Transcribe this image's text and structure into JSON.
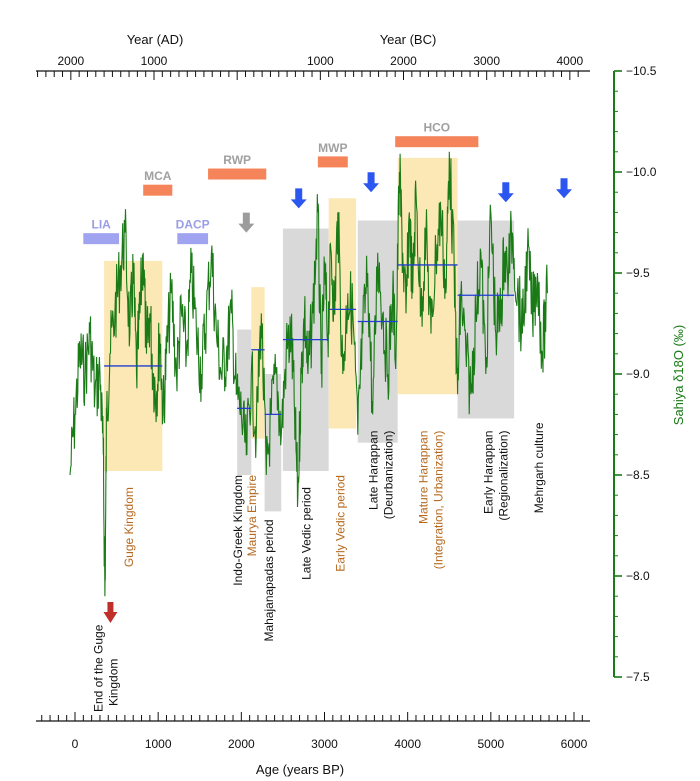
{
  "chart_data": {
    "type": "line",
    "title": "",
    "xlabel": "Age (years BP)",
    "ylabel": "Sahiya δ18O (‰)",
    "xlim": [
      -450,
      6000
    ],
    "ylim": [
      -7.5,
      -10.5
    ],
    "y_inverted": true,
    "top_axis": {
      "ad_label": "Year (AD)",
      "bc_label": "Year (BC)",
      "ad_ticks": [
        {
          "label": "2000",
          "bp": -50
        },
        {
          "label": "1000",
          "bp": 950
        }
      ],
      "bc_ticks": [
        {
          "label": "1000",
          "bp": 2950
        },
        {
          "label": "2000",
          "bp": 3950
        },
        {
          "label": "3000",
          "bp": 4950
        },
        {
          "label": "4000",
          "bp": 5950
        }
      ]
    },
    "x_ticks": [
      0,
      1000,
      2000,
      3000,
      4000,
      5000,
      6000
    ],
    "x_tick_labels": [
      "0",
      "1000",
      "2000",
      "3000",
      "4000",
      "5000",
      "6000"
    ],
    "y_ticks": [
      -10.5,
      -10.0,
      -9.5,
      -9.0,
      -8.5,
      -8.0,
      -7.5
    ],
    "y_tick_labels": [
      "−10.5",
      "−10.0",
      "−9.5",
      "−9.0",
      "−8.5",
      "−8.0",
      "−7.5"
    ],
    "series": [
      {
        "name": "Sahiya δ18O",
        "color": "#1a7a16",
        "x": [
          -60,
          0,
          60,
          120,
          180,
          240,
          300,
          340,
          360,
          380,
          420,
          480,
          540,
          600,
          660,
          700,
          740,
          780,
          820,
          860,
          900,
          940,
          980,
          1020,
          1060,
          1100,
          1160,
          1220,
          1280,
          1340,
          1400,
          1460,
          1520,
          1580,
          1640,
          1700,
          1760,
          1820,
          1880,
          1940,
          2000,
          2060,
          2120,
          2180,
          2240,
          2300,
          2360,
          2420,
          2480,
          2540,
          2600,
          2640,
          2680,
          2720,
          2760,
          2800,
          2860,
          2920,
          2960,
          3000,
          3040,
          3080,
          3120,
          3160,
          3220,
          3280,
          3340,
          3400,
          3460,
          3520,
          3580,
          3640,
          3700,
          3760,
          3820,
          3860,
          3900,
          3940,
          3980,
          4020,
          4060,
          4100,
          4160,
          4220,
          4280,
          4340,
          4400,
          4460,
          4500,
          4560,
          4600,
          4640,
          4700,
          4760,
          4820,
          4880,
          4940,
          5000,
          5060,
          5120,
          5160,
          5200,
          5260,
          5320,
          5380,
          5440,
          5500,
          5560,
          5620,
          5680
        ],
        "values": [
          -8.5,
          -8.8,
          -9.1,
          -9.0,
          -9.2,
          -8.9,
          -9.0,
          -8.6,
          -7.9,
          -8.8,
          -9.1,
          -9.3,
          -9.5,
          -9.7,
          -9.2,
          -9.5,
          -9.0,
          -9.3,
          -9.6,
          -9.1,
          -9.3,
          -9.0,
          -8.9,
          -9.2,
          -8.8,
          -9.1,
          -9.4,
          -9.0,
          -9.3,
          -9.1,
          -9.5,
          -9.2,
          -9.0,
          -9.3,
          -9.6,
          -9.2,
          -9.0,
          -9.1,
          -9.3,
          -8.9,
          -8.8,
          -8.6,
          -9.0,
          -8.7,
          -9.3,
          -8.5,
          -8.8,
          -9.0,
          -8.7,
          -9.1,
          -9.2,
          -8.8,
          -8.4,
          -9.0,
          -9.3,
          -9.0,
          -9.3,
          -9.8,
          -9.0,
          -9.5,
          -9.2,
          -9.6,
          -9.3,
          -9.8,
          -9.0,
          -9.4,
          -9.3,
          -8.7,
          -9.2,
          -9.5,
          -8.8,
          -9.6,
          -9.3,
          -9.0,
          -9.4,
          -9.1,
          -10.0,
          -9.6,
          -9.3,
          -9.8,
          -9.4,
          -9.9,
          -9.3,
          -9.7,
          -9.2,
          -9.6,
          -9.8,
          -9.4,
          -10.1,
          -9.5,
          -8.9,
          -9.4,
          -9.1,
          -8.9,
          -9.3,
          -9.6,
          -9.0,
          -9.8,
          -9.2,
          -9.3,
          -9.6,
          -9.5,
          -9.7,
          -9.4,
          -9.2,
          -9.6,
          -9.3,
          -9.5,
          -9.1,
          -9.4
        ]
      }
    ],
    "climate_events": [
      {
        "label": "LIA",
        "x0": 100,
        "x1": 530,
        "y": -9.67,
        "color": "#a0a4f0",
        "label_color": "#9a9ee6"
      },
      {
        "label": "DACP",
        "x0": 1230,
        "x1": 1600,
        "y": -9.67,
        "color": "#a0a4f0",
        "label_color": "#9a9ee6"
      },
      {
        "label": "MCA",
        "x0": 820,
        "x1": 1170,
        "y": -9.91,
        "color": "#f5845a",
        "label_color": "#a0a0a0"
      },
      {
        "label": "RWP",
        "x0": 1600,
        "x1": 2300,
        "y": -9.99,
        "color": "#f5845a",
        "label_color": "#a0a0a0"
      },
      {
        "label": "MWP",
        "x0": 2920,
        "x1": 3280,
        "y": -10.05,
        "color": "#f5845a",
        "label_color": "#a0a0a0"
      },
      {
        "label": "HCO",
        "x0": 3850,
        "x1": 4850,
        "y": -10.15,
        "color": "#f5845a",
        "label_color": "#a0a0a0"
      }
    ],
    "arrows": [
      {
        "x": 2060,
        "y": -9.7,
        "color": "#9c9c9c"
      },
      {
        "x": 2690,
        "y": -9.82,
        "color": "#2b57f0"
      },
      {
        "x": 3560,
        "y": -9.9,
        "color": "#2b57f0"
      },
      {
        "x": 5180,
        "y": -9.85,
        "color": "#2b57f0"
      },
      {
        "x": 5880,
        "y": -9.87,
        "color": "#2b57f0"
      }
    ],
    "periods": [
      {
        "name": "Guge Kingdom",
        "x0": 350,
        "x1": 1050,
        "ytop": -9.56,
        "ybot": -8.52,
        "fill": "#fbe8b4",
        "mean": -9.04,
        "text_color": "#b5691f",
        "lines": [
          "Guge Kingdom"
        ],
        "label_x": 700,
        "label_top": -8.44
      },
      {
        "name": "Indo-Greek Kingdom",
        "x0": 1950,
        "x1": 2120,
        "ytop": -9.22,
        "ybot": -8.5,
        "fill": "#d9d9d9",
        "mean": -8.83,
        "text_color": "#111111",
        "lines": [
          "Indo-Greek Kingdom"
        ],
        "label_x": 2010,
        "label_top": -8.5
      },
      {
        "name": "Maurya Empire",
        "x0": 2120,
        "x1": 2280,
        "ytop": -9.43,
        "ybot": -8.68,
        "fill": "#fbe8b4",
        "mean": -9.12,
        "text_color": "#b5691f",
        "lines": [
          "Maurya Empire"
        ],
        "label_x": 2175,
        "label_top": -8.5
      },
      {
        "name": "Mahajanapadas period",
        "x0": 2280,
        "x1": 2480,
        "ytop": -9.0,
        "ybot": -8.32,
        "fill": "#d9d9d9",
        "mean": -8.8,
        "text_color": "#111111",
        "lines": [
          "Mahajanapadas period"
        ],
        "label_x": 2380,
        "label_top": -8.28
      },
      {
        "name": "Late Vedic period",
        "x0": 2500,
        "x1": 3050,
        "ytop": -9.72,
        "ybot": -8.52,
        "fill": "#d9d9d9",
        "mean": -9.17,
        "text_color": "#111111",
        "lines": [
          "Late Vedic period"
        ],
        "label_x": 2830,
        "label_top": -8.44
      },
      {
        "name": "Early Vedic period",
        "x0": 3050,
        "x1": 3380,
        "ytop": -9.87,
        "ybot": -8.73,
        "fill": "#fbe8b4",
        "mean": -9.32,
        "text_color": "#b5691f",
        "lines": [
          "Early Vedic period"
        ],
        "label_x": 3240,
        "label_top": -8.5
      },
      {
        "name": "Late Harappan",
        "x0": 3400,
        "x1": 3880,
        "ytop": -9.76,
        "ybot": -8.66,
        "fill": "#d9d9d9",
        "mean": -9.26,
        "text_color": "#111111",
        "lines": [
          "Late Harappan",
          "(Deurbanization)"
        ],
        "label_x": 3640,
        "label_top": -8.72
      },
      {
        "name": "Mature Harappan",
        "x0": 3880,
        "x1": 4600,
        "ytop": -10.07,
        "ybot": -8.9,
        "fill": "#fbe8b4",
        "mean": -9.54,
        "text_color": "#b5691f",
        "lines": [
          "Mature Harappan",
          "(Integration, Urbanization)"
        ],
        "label_x": 4240,
        "label_top": -8.72
      },
      {
        "name": "Early Harappan",
        "x0": 4600,
        "x1": 5280,
        "ytop": -9.76,
        "ybot": -8.78,
        "fill": "#d9d9d9",
        "mean": -9.39,
        "text_color": "#111111",
        "lines": [
          "Early Harappan",
          "(Regionalization)"
        ],
        "label_x": 5020,
        "label_top": -8.72
      },
      {
        "name": "Mehrgarh culture",
        "x0": null,
        "x1": null,
        "ytop": null,
        "ybot": null,
        "fill": null,
        "mean": null,
        "text_color": "#111111",
        "lines": [
          "Mehrgarh culture"
        ],
        "label_x": 5630,
        "label_top": -8.76
      }
    ],
    "end_of_guge": {
      "lines": [
        "End of  the Guge",
        "Kingdom"
      ],
      "x": 330,
      "arrow_color": "#c0302a"
    }
  }
}
